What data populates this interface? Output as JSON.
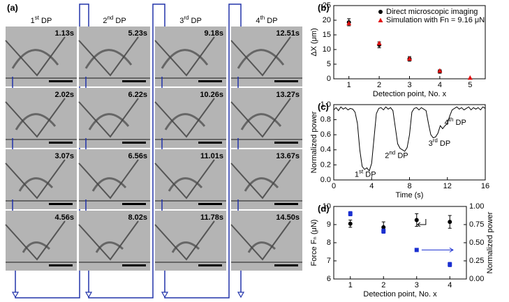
{
  "panel_a": {
    "label": "(a)",
    "columns": [
      {
        "title": {
          "base": "1",
          "sup": "st",
          "rest": " DP"
        },
        "times": [
          "1.13s",
          "2.02s",
          "3.07s",
          "4.56s"
        ]
      },
      {
        "title": {
          "base": "2",
          "sup": "nd",
          "rest": " DP"
        },
        "times": [
          "5.23s",
          "6.22s",
          "6.56s",
          "8.02s"
        ]
      },
      {
        "title": {
          "base": "3",
          "sup": "rd",
          "rest": " DP"
        },
        "times": [
          "9.18s",
          "10.26s",
          "11.01s",
          "11.78s"
        ]
      },
      {
        "title": {
          "base": "4",
          "sup": "th",
          "rest": " DP"
        },
        "times": [
          "12.51s",
          "13.27s",
          "13.67s",
          "14.50s"
        ]
      }
    ]
  },
  "chart_data": [
    {
      "type": "scatter",
      "label": "(b)",
      "xlabel": "Detection point, No. x",
      "ylabel": "ΔX (μm)",
      "xlim": [
        0.5,
        5.5
      ],
      "xticks": [
        1,
        2,
        3,
        4,
        5
      ],
      "ylim": [
        0,
        25
      ],
      "yticks": [
        0,
        5,
        10,
        15,
        20,
        25
      ],
      "legend": "upper right",
      "series": [
        {
          "name": "Direct microscopic imaging",
          "color": "#000000",
          "marker": "circle",
          "x": [
            1,
            2,
            3,
            4
          ],
          "values": [
            19.3,
            11.6,
            6.8,
            2.5
          ],
          "errors": [
            1.2,
            1.0,
            0.8,
            0.6
          ]
        },
        {
          "name": "Simulation with Fn = 9.16 μN",
          "color": "#e01010",
          "marker": "triangle",
          "x": [
            1,
            2,
            3,
            4,
            5
          ],
          "values": [
            19.0,
            12.2,
            6.9,
            2.8,
            0.4
          ]
        }
      ]
    },
    {
      "type": "line",
      "label": "(c)",
      "xlabel": "Time (s)",
      "ylabel": "Normalized power",
      "xlim": [
        0,
        16
      ],
      "xticks": [
        0,
        4,
        8,
        12,
        16
      ],
      "ylim": [
        0,
        1
      ],
      "yticks": [
        {
          "value": 0,
          "label": "0.0"
        },
        0.2,
        0.4,
        0.6,
        0.8,
        {
          "value": 1,
          "label": "1.0"
        }
      ],
      "annotations": [
        {
          "base": "1",
          "sup": "st",
          "rest": " DP"
        },
        {
          "base": "2",
          "sup": "nd",
          "rest": " DP"
        },
        {
          "base": "3",
          "sup": "rd",
          "rest": " DP"
        },
        {
          "base": "4",
          "sup": "th",
          "rest": " DP"
        }
      ],
      "series": [
        {
          "color": "#000000",
          "x": [
            0,
            0.25,
            0.5,
            0.75,
            1,
            1.25,
            1.5,
            1.75,
            2,
            2.25,
            2.5,
            2.75,
            3,
            3.25,
            3.5,
            3.75,
            4,
            4.25,
            4.5,
            4.75,
            5,
            5.25,
            5.5,
            5.75,
            6,
            6.25,
            6.5,
            6.75,
            7,
            7.25,
            7.5,
            7.75,
            8,
            8.25,
            8.5,
            8.75,
            9,
            9.25,
            9.5,
            9.75,
            10,
            10.25,
            10.5,
            10.75,
            11,
            11.25,
            11.5,
            11.75,
            12,
            12.25,
            12.5,
            12.75,
            13,
            13.25,
            13.5,
            13.75,
            14,
            14.25,
            14.5,
            14.75,
            15,
            15.25,
            15.5,
            15.75,
            16
          ],
          "values": [
            0.93,
            0.96,
            0.92,
            0.97,
            0.94,
            0.96,
            0.93,
            0.95,
            0.94,
            0.9,
            0.75,
            0.4,
            0.18,
            0.14,
            0.16,
            0.12,
            0.22,
            0.55,
            0.88,
            0.95,
            0.96,
            0.93,
            0.97,
            0.94,
            0.96,
            0.92,
            0.7,
            0.48,
            0.42,
            0.4,
            0.38,
            0.43,
            0.6,
            0.9,
            0.95,
            0.96,
            0.93,
            0.96,
            0.94,
            0.92,
            0.75,
            0.6,
            0.56,
            0.57,
            0.62,
            0.72,
            0.68,
            0.72,
            0.75,
            0.85,
            0.93,
            0.95,
            0.97,
            0.94,
            0.96,
            0.93,
            0.95,
            0.97,
            0.93,
            0.96,
            0.94,
            0.96,
            0.93,
            0.97,
            0.95
          ]
        }
      ]
    },
    {
      "type": "scatter",
      "label": "(d)",
      "xlabel": "Detection point, No. x",
      "ylabel": "Force Fₙ (μN)",
      "y2label": "Normalized power",
      "xlim": [
        0.5,
        4.5
      ],
      "xticks": [
        1,
        2,
        3,
        4
      ],
      "ylim": [
        6,
        10
      ],
      "yticks": [
        6,
        7,
        8,
        9,
        10
      ],
      "y2lim": [
        0,
        1
      ],
      "y2ticks": [
        {
          "value": 0,
          "label": "0.00"
        },
        0.25,
        {
          "value": 0.5,
          "label": "0.50"
        },
        0.75,
        {
          "value": 1,
          "label": "1.00"
        }
      ],
      "series": [
        {
          "color": "#000000",
          "marker": "circle",
          "x": [
            1,
            2,
            3,
            4
          ],
          "values": [
            9.05,
            8.85,
            9.25,
            9.15
          ],
          "errors": [
            0.2,
            0.3,
            0.35,
            0.35
          ]
        },
        {
          "color": "#1a2fd0",
          "marker": "square",
          "axis": "y2",
          "x": [
            1,
            2,
            3,
            4
          ],
          "values": [
            0.9,
            0.66,
            0.4,
            0.2
          ],
          "errors": [
            0.03,
            0.03,
            0.02,
            0.03
          ]
        }
      ]
    }
  ]
}
